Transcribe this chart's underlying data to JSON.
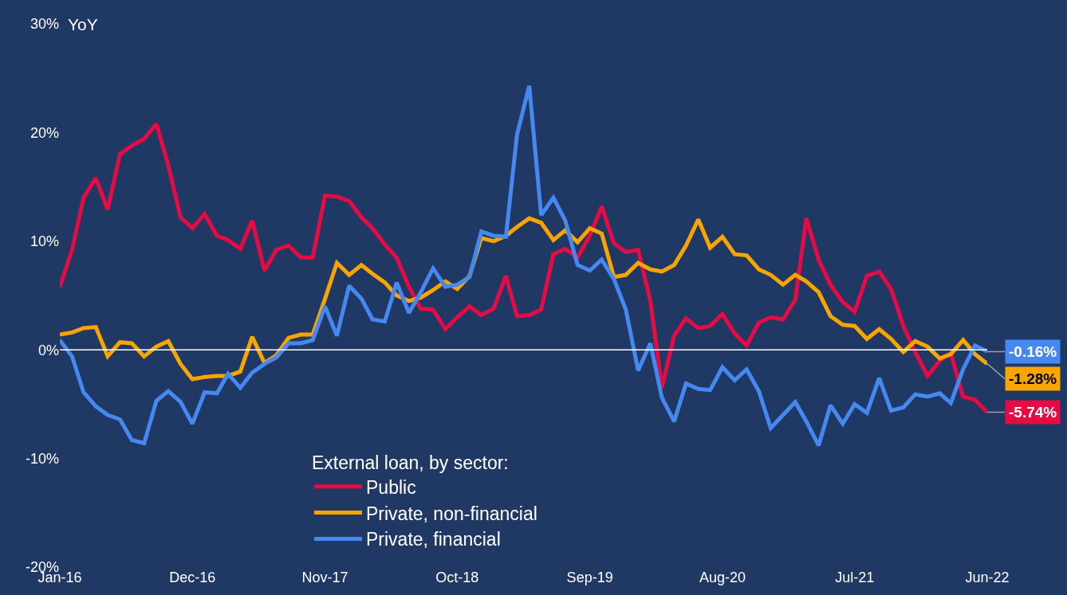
{
  "chart_data": {
    "type": "line",
    "ylabel": "YoY",
    "legend_title": "External loan, by sector:",
    "x": [
      "2016-01",
      "2016-02",
      "2016-03",
      "2016-04",
      "2016-05",
      "2016-06",
      "2016-07",
      "2016-08",
      "2016-09",
      "2016-10",
      "2016-11",
      "2016-12",
      "2017-01",
      "2017-02",
      "2017-03",
      "2017-04",
      "2017-05",
      "2017-06",
      "2017-07",
      "2017-08",
      "2017-09",
      "2017-10",
      "2017-11",
      "2017-12",
      "2018-01",
      "2018-02",
      "2018-03",
      "2018-04",
      "2018-05",
      "2018-06",
      "2018-07",
      "2018-08",
      "2018-09",
      "2018-10",
      "2018-11",
      "2018-12",
      "2019-01",
      "2019-02",
      "2019-03",
      "2019-04",
      "2019-05",
      "2019-06",
      "2019-07",
      "2019-08",
      "2019-09",
      "2019-10",
      "2019-11",
      "2019-12",
      "2020-01",
      "2020-02",
      "2020-03",
      "2020-04",
      "2020-05",
      "2020-06",
      "2020-07",
      "2020-08",
      "2020-09",
      "2020-10",
      "2020-11",
      "2020-12",
      "2021-01",
      "2021-02",
      "2021-03",
      "2021-04",
      "2021-05",
      "2021-06",
      "2021-07",
      "2021-08",
      "2021-09",
      "2021-10",
      "2021-11",
      "2021-12",
      "2022-01",
      "2022-02",
      "2022-03",
      "2022-04",
      "2022-05",
      "2022-06"
    ],
    "series": [
      {
        "name": "Public",
        "color": "#e60b45",
        "values": [
          5.8,
          9.2,
          14,
          15.8,
          12.9,
          18,
          18.8,
          19.4,
          20.8,
          17,
          12.2,
          11.2,
          12.5,
          10.5,
          10.1,
          9.3,
          11.9,
          7.3,
          9.2,
          9.6,
          8.5,
          8.5,
          14.2,
          14.1,
          13.7,
          12.2,
          11.2,
          9.7,
          8.5,
          5.8,
          3.8,
          3.7,
          1.9,
          3.0,
          4.0,
          3.2,
          3.8,
          6.8,
          3.1,
          3.2,
          3.7,
          8.8,
          9.3,
          8.5,
          10.5,
          13.2,
          9.8,
          9.0,
          9.2,
          4.5,
          -3.5,
          1.3,
          2.9,
          2.0,
          2.2,
          3.3,
          1.5,
          0.4,
          2.5,
          3.0,
          2.8,
          4.6,
          12.1,
          8.3,
          6.0,
          4.4,
          3.5,
          6.8,
          7.2,
          5.6,
          2.2,
          -0.2,
          -2.4,
          -1.0,
          -0.3,
          -4.3,
          -4.6,
          -5.74
        ],
        "value_labels": [
          null,
          null,
          null,
          null,
          null,
          null,
          null,
          null,
          null,
          null,
          null,
          null,
          null,
          null,
          null,
          null,
          null,
          null,
          null,
          null,
          null,
          null,
          null,
          null,
          null,
          null,
          null,
          null,
          null,
          null,
          null,
          null,
          null,
          null,
          null,
          null,
          null,
          null,
          null,
          null,
          null,
          null,
          null,
          null,
          null,
          null,
          null,
          null,
          null,
          null,
          null,
          null,
          null,
          null,
          null,
          null,
          null,
          null,
          null,
          null,
          null,
          null,
          null,
          null,
          null,
          null,
          null,
          null,
          null,
          null,
          null,
          null,
          null,
          null,
          null,
          null,
          null,
          "-5.74%"
        ]
      },
      {
        "name": "Private, non-financial",
        "color": "#f8a500",
        "values": [
          1.4,
          1.6,
          2.0,
          2.1,
          -0.6,
          0.7,
          0.6,
          -0.6,
          0.3,
          0.8,
          -1.3,
          -2.7,
          -2.5,
          -2.4,
          -2.4,
          -2.0,
          1.2,
          -1.2,
          -0.5,
          1.1,
          1.4,
          1.4,
          4.7,
          8.0,
          6.9,
          7.8,
          7.0,
          6.2,
          5.0,
          4.5,
          4.8,
          5.5,
          6.3,
          5.6,
          6.8,
          10.3,
          10.0,
          10.5,
          11.3,
          12.1,
          11.7,
          10.1,
          11.0,
          9.9,
          11.2,
          10.7,
          6.7,
          6.9,
          8.0,
          7.4,
          7.2,
          7.8,
          9.6,
          12.0,
          9.4,
          10.4,
          8.8,
          8.7,
          7.4,
          6.9,
          6.0,
          6.9,
          6.3,
          5.3,
          3.1,
          2.3,
          2.2,
          1.0,
          1.9,
          1.0,
          -0.2,
          0.8,
          0.3,
          -0.8,
          -0.4,
          0.9,
          -0.4,
          -1.28
        ],
        "value_labels": [
          null,
          null,
          null,
          null,
          null,
          null,
          null,
          null,
          null,
          null,
          null,
          null,
          null,
          null,
          null,
          null,
          null,
          null,
          null,
          null,
          null,
          null,
          null,
          null,
          null,
          null,
          null,
          null,
          null,
          null,
          null,
          null,
          null,
          null,
          null,
          null,
          null,
          null,
          null,
          null,
          null,
          null,
          null,
          null,
          null,
          null,
          null,
          null,
          null,
          null,
          null,
          null,
          null,
          null,
          null,
          null,
          null,
          null,
          null,
          null,
          null,
          null,
          null,
          null,
          null,
          null,
          null,
          null,
          null,
          null,
          null,
          null,
          null,
          null,
          null,
          null,
          null,
          "-1.28%"
        ]
      },
      {
        "name": "Private, financial",
        "color": "#4488f0",
        "values": [
          0.9,
          -0.6,
          -3.9,
          -5.2,
          -6.0,
          -6.4,
          -8.3,
          -8.6,
          -4.7,
          -3.8,
          -4.8,
          -6.8,
          -3.9,
          -4.0,
          -2.2,
          -3.5,
          -2.1,
          -1.3,
          -0.7,
          0.6,
          0.6,
          0.9,
          4.0,
          1.3,
          5.9,
          4.7,
          2.8,
          2.6,
          6.2,
          3.4,
          5.3,
          7.5,
          5.8,
          6.0,
          6.7,
          10.9,
          10.5,
          10.4,
          19.8,
          24.3,
          12.4,
          14.0,
          11.9,
          7.8,
          7.3,
          8.3,
          6.5,
          3.7,
          -1.9,
          0.6,
          -4.4,
          -6.6,
          -3.1,
          -3.6,
          -3.7,
          -1.6,
          -2.8,
          -1.8,
          -3.8,
          -7.2,
          -6.0,
          -4.8,
          -6.6,
          -8.8,
          -5.1,
          -6.8,
          -5.0,
          -5.8,
          -2.6,
          -5.6,
          -5.3,
          -4.1,
          -4.3,
          -4.0,
          -4.9,
          -1.8,
          0.4,
          -0.16
        ],
        "value_labels": [
          null,
          null,
          null,
          null,
          null,
          null,
          null,
          null,
          null,
          null,
          null,
          null,
          null,
          null,
          null,
          null,
          null,
          null,
          null,
          null,
          null,
          null,
          null,
          null,
          null,
          null,
          null,
          null,
          null,
          null,
          null,
          null,
          null,
          null,
          null,
          null,
          null,
          null,
          null,
          null,
          null,
          null,
          null,
          null,
          null,
          null,
          null,
          null,
          null,
          null,
          null,
          null,
          null,
          null,
          null,
          null,
          null,
          null,
          null,
          null,
          null,
          null,
          null,
          null,
          null,
          null,
          null,
          null,
          null,
          null,
          null,
          null,
          null,
          null,
          null,
          null,
          null,
          "-0.16%"
        ]
      }
    ],
    "xlim": [
      "2016-01",
      "2022-06"
    ],
    "xticks": [
      {
        "value": "2016-01",
        "label": "Jan-16"
      },
      {
        "value": "2016-12",
        "label": "Dec-16"
      },
      {
        "value": "2017-11",
        "label": "Nov-17"
      },
      {
        "value": "2018-10",
        "label": "Oct-18"
      },
      {
        "value": "2019-09",
        "label": "Sep-19"
      },
      {
        "value": "2020-08",
        "label": "Aug-20"
      },
      {
        "value": "2021-07",
        "label": "Jul-21"
      },
      {
        "value": "2022-06",
        "label": "Jun-22"
      }
    ],
    "ylim": [
      -20,
      30
    ],
    "yticks": [
      {
        "value": -20,
        "label": "-20%"
      },
      {
        "value": -10,
        "label": "-10%"
      },
      {
        "value": 0,
        "label": "0%"
      },
      {
        "value": 10,
        "label": "10%"
      },
      {
        "value": 20,
        "label": "20%"
      },
      {
        "value": 30,
        "label": "30%"
      }
    ],
    "ref_lines": [
      {
        "axis": "y",
        "value": 0,
        "color": "#ffffff"
      }
    ],
    "grid": false,
    "legend": "bottom",
    "marker": "none",
    "line_style": "solid"
  }
}
